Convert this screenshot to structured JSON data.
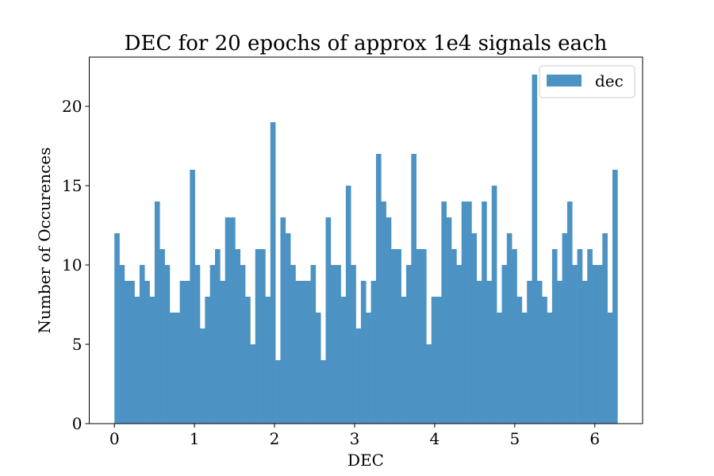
{
  "chart_data": {
    "type": "bar",
    "title": "DEC for 20 epochs of approx 1e4 signals each",
    "xlabel": "DEC",
    "ylabel": "Number of Occurences",
    "xlim": [
      -0.314,
      6.597
    ],
    "ylim": [
      0,
      23.1
    ],
    "xticks": [
      0,
      1,
      2,
      3,
      4,
      5,
      6
    ],
    "xtick_labels": [
      "0",
      "1",
      "2",
      "3",
      "4",
      "5",
      "6"
    ],
    "yticks": [
      0,
      5,
      10,
      15,
      20
    ],
    "ytick_labels": [
      "0",
      "5",
      "10",
      "15",
      "20"
    ],
    "bin_start": 0,
    "bin_end": 6.2832,
    "grid": false,
    "legend_position": "top-right",
    "series": [
      {
        "name": "dec",
        "color": "#4c93c4",
        "values": [
          12,
          10,
          9,
          9,
          8,
          10,
          9,
          8,
          14,
          11,
          10,
          7,
          7,
          9,
          9,
          16,
          10,
          6,
          8,
          10,
          11,
          9,
          13,
          13,
          11,
          10,
          8,
          5,
          11,
          11,
          8,
          19,
          4,
          13,
          12,
          10,
          9,
          9,
          9,
          10,
          7,
          4,
          13,
          10,
          10,
          8,
          15,
          10,
          6,
          9,
          7,
          9,
          17,
          14,
          13,
          11,
          11,
          8,
          10,
          17,
          11,
          11,
          5,
          8,
          8,
          14,
          13,
          11,
          10,
          14,
          14,
          12,
          9,
          14,
          9,
          15,
          7,
          10,
          12,
          11,
          8,
          7,
          9,
          22,
          9,
          8,
          7,
          11,
          9,
          12,
          14,
          10,
          11,
          9,
          11,
          10,
          10,
          12,
          7,
          16
        ]
      }
    ]
  }
}
